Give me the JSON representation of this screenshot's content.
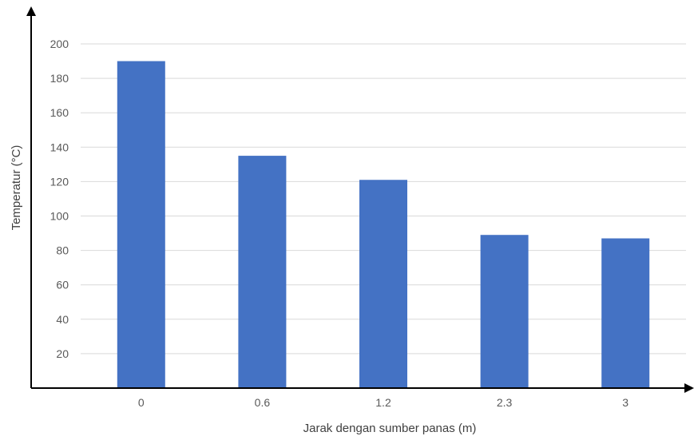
{
  "chart_data": {
    "type": "bar",
    "categories": [
      "0",
      "0.6",
      "1.2",
      "2.3",
      "3"
    ],
    "values": [
      190,
      135,
      121,
      89,
      87
    ],
    "xlabel": "Jarak dengan sumber panas (m)",
    "ylabel": "Temperatur (°C)",
    "ylim": [
      0,
      200
    ],
    "yticks": [
      20,
      40,
      60,
      80,
      100,
      120,
      140,
      160,
      180,
      200
    ],
    "grid": true,
    "legend": "none",
    "bar_color": "#4472c4"
  }
}
